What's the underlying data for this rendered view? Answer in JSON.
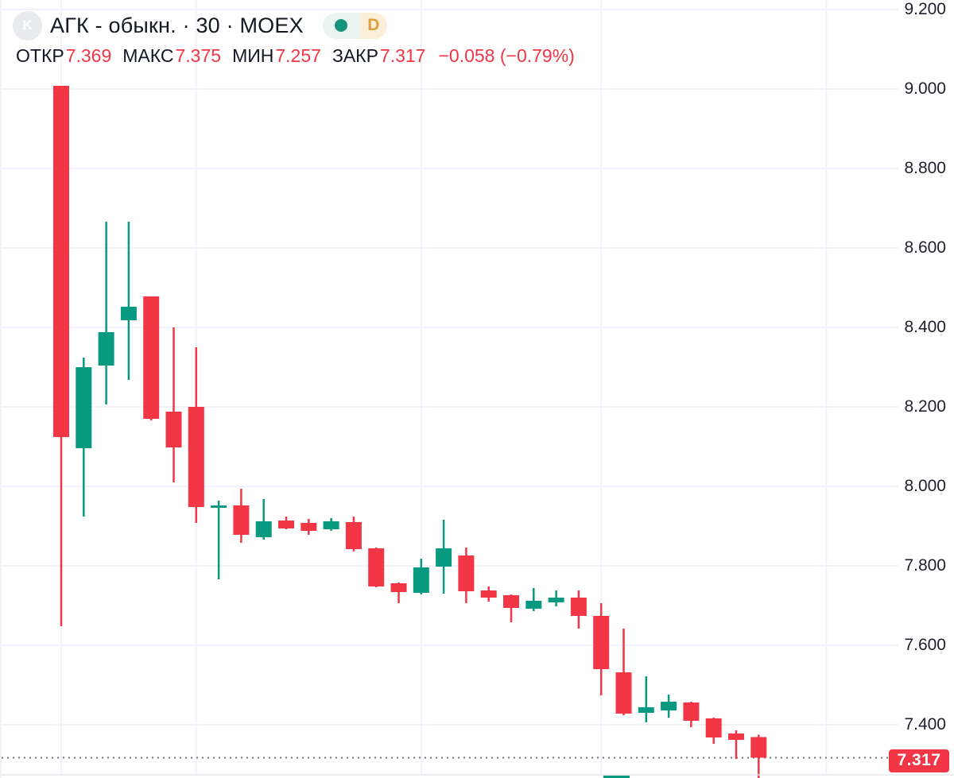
{
  "header": {
    "avatar_letter": "K",
    "symbol_title": "АГК - обыкн. · 30 · MOEX",
    "interval_badge": {
      "label": "D"
    },
    "ohlc": {
      "open_label": "ОТКР",
      "open": "7.369",
      "high_label": "МАКС",
      "high": "7.375",
      "low_label": "МИН",
      "low": "7.257",
      "close_label": "ЗАКР",
      "close": "7.317",
      "change": "−0.058 (−0.79%)"
    }
  },
  "colors": {
    "up": "#089981",
    "down": "#f23645",
    "grid": "#f0f3fa",
    "dotted_price_line": "#747880",
    "text": "#131722",
    "value_red": "#f23645",
    "label_bg": "#f23645",
    "pane_separator": "#e4e6eb"
  },
  "chart_data": {
    "type": "candlestick",
    "symbol": "АГК - обыкн.",
    "interval": "30",
    "exchange": "MOEX",
    "title": "АГК - обыкн. · 30 · MOEX",
    "legend_position": "top-left",
    "grid": true,
    "y_axis_side": "right",
    "ylim": [
      7.26,
      9.22
    ],
    "y_ticks": [
      "9.200",
      "9.000",
      "8.800",
      "8.600",
      "8.400",
      "8.200",
      "8.000",
      "7.800",
      "7.600",
      "7.400"
    ],
    "last_price": "7.317",
    "last_close_line_price": 7.317,
    "session_break_slots": [
      0,
      6,
      16,
      24,
      34
    ],
    "candles": [
      {
        "o": 9.008,
        "h": 9.008,
        "l": 7.648,
        "c": 8.124
      },
      {
        "o": 8.096,
        "h": 8.324,
        "l": 7.924,
        "c": 8.3
      },
      {
        "o": 8.304,
        "h": 8.666,
        "l": 8.206,
        "c": 8.388
      },
      {
        "o": 8.418,
        "h": 8.666,
        "l": 8.268,
        "c": 8.452
      },
      {
        "o": 8.478,
        "h": 8.478,
        "l": 8.166,
        "c": 8.17
      },
      {
        "o": 8.188,
        "h": 8.4,
        "l": 8.01,
        "c": 8.098
      },
      {
        "o": 8.2,
        "h": 8.35,
        "l": 7.908,
        "c": 7.948
      },
      {
        "o": 7.948,
        "h": 7.964,
        "l": 7.766,
        "c": 7.952
      },
      {
        "o": 7.952,
        "h": 7.994,
        "l": 7.858,
        "c": 7.878
      },
      {
        "o": 7.872,
        "h": 7.968,
        "l": 7.866,
        "c": 7.912
      },
      {
        "o": 7.914,
        "h": 7.924,
        "l": 7.892,
        "c": 7.894
      },
      {
        "o": 7.908,
        "h": 7.918,
        "l": 7.878,
        "c": 7.888
      },
      {
        "o": 7.892,
        "h": 7.92,
        "l": 7.888,
        "c": 7.912
      },
      {
        "o": 7.91,
        "h": 7.924,
        "l": 7.836,
        "c": 7.842
      },
      {
        "o": 7.844,
        "h": 7.846,
        "l": 7.746,
        "c": 7.748
      },
      {
        "o": 7.756,
        "h": 7.758,
        "l": 7.706,
        "c": 7.734
      },
      {
        "o": 7.732,
        "h": 7.818,
        "l": 7.728,
        "c": 7.796
      },
      {
        "o": 7.798,
        "h": 7.916,
        "l": 7.73,
        "c": 7.844
      },
      {
        "o": 7.826,
        "h": 7.846,
        "l": 7.706,
        "c": 7.736
      },
      {
        "o": 7.738,
        "h": 7.748,
        "l": 7.71,
        "c": 7.72
      },
      {
        "o": 7.726,
        "h": 7.728,
        "l": 7.658,
        "c": 7.694
      },
      {
        "o": 7.692,
        "h": 7.744,
        "l": 7.686,
        "c": 7.712
      },
      {
        "o": 7.708,
        "h": 7.738,
        "l": 7.698,
        "c": 7.72
      },
      {
        "o": 7.72,
        "h": 7.738,
        "l": 7.642,
        "c": 7.674
      },
      {
        "o": 7.674,
        "h": 7.706,
        "l": 7.474,
        "c": 7.54
      },
      {
        "o": 7.532,
        "h": 7.642,
        "l": 7.424,
        "c": 7.428
      },
      {
        "o": 7.43,
        "h": 7.522,
        "l": 7.406,
        "c": 7.444
      },
      {
        "o": 7.436,
        "h": 7.476,
        "l": 7.418,
        "c": 7.458
      },
      {
        "o": 7.456,
        "h": 7.458,
        "l": 7.394,
        "c": 7.41
      },
      {
        "o": 7.416,
        "h": 7.418,
        "l": 7.352,
        "c": 7.368
      },
      {
        "o": 7.378,
        "h": 7.386,
        "l": 7.314,
        "c": 7.362
      },
      {
        "o": 7.369,
        "h": 7.375,
        "l": 7.257,
        "c": 7.317
      }
    ]
  }
}
